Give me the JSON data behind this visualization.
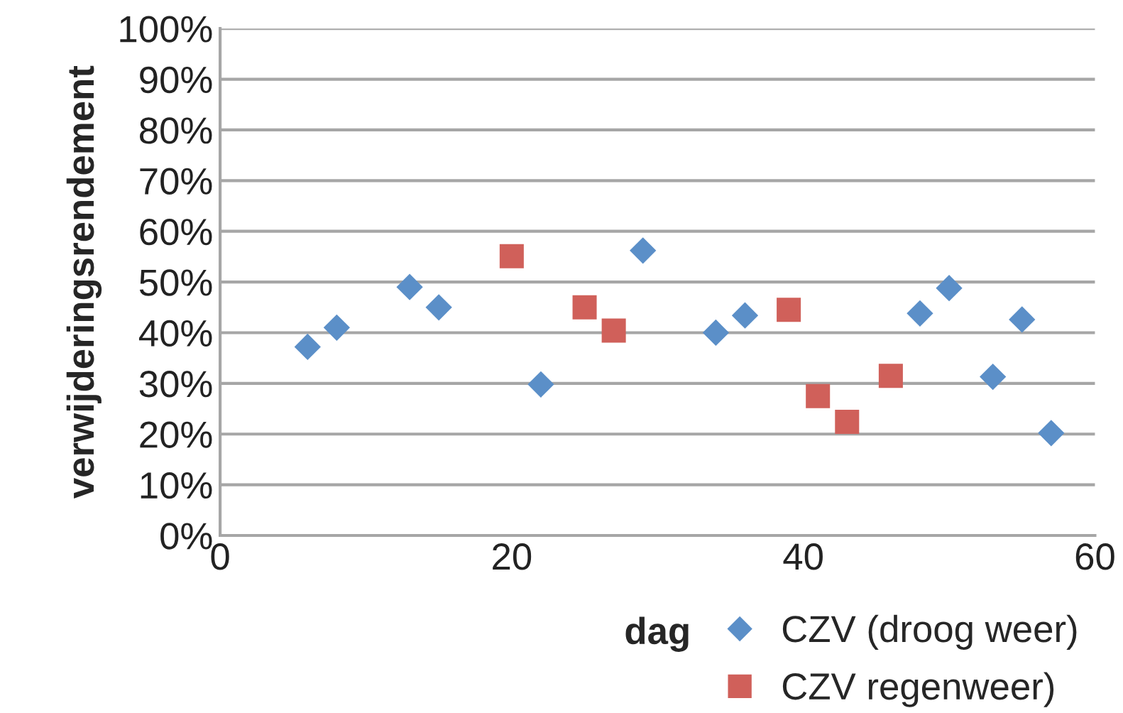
{
  "chart_data": {
    "type": "scatter",
    "xlabel": "dag",
    "ylabel": "verwijderingsrendement",
    "xlim": [
      0,
      60
    ],
    "xticks": [
      0,
      20,
      40,
      60
    ],
    "ylim": [
      0,
      100
    ],
    "yticks": [
      {
        "value": 0,
        "label": "0%"
      },
      {
        "value": 10,
        "label": "10%"
      },
      {
        "value": 20,
        "label": "20%"
      },
      {
        "value": 30,
        "label": "30%"
      },
      {
        "value": 40,
        "label": "40%"
      },
      {
        "value": 50,
        "label": "50%"
      },
      {
        "value": 60,
        "label": "60%"
      },
      {
        "value": 70,
        "label": "70%"
      },
      {
        "value": 80,
        "label": "80%"
      },
      {
        "value": 90,
        "label": "90%"
      },
      {
        "value": 100,
        "label": "100%"
      }
    ],
    "grid": "y",
    "legend": "bottom right",
    "series": [
      {
        "name": "CZV (droog weer)",
        "color": "#5b8fc8",
        "marker": "diamond",
        "x": [
          6,
          8,
          13,
          15,
          22,
          29,
          34,
          36,
          48,
          50,
          53,
          55,
          57
        ],
        "values": [
          37.2,
          41,
          49,
          45,
          29.8,
          56.2,
          40,
          43.4,
          43.8,
          48.8,
          31.3,
          42.6,
          20.2
        ]
      },
      {
        "name": "CZV regenweer)",
        "color": "#d0605a",
        "marker": "square",
        "x": [
          20,
          25,
          27,
          39,
          41,
          43,
          46
        ],
        "values": [
          55.1,
          45,
          40.4,
          44.5,
          27.5,
          22.4,
          31.5
        ]
      }
    ]
  }
}
